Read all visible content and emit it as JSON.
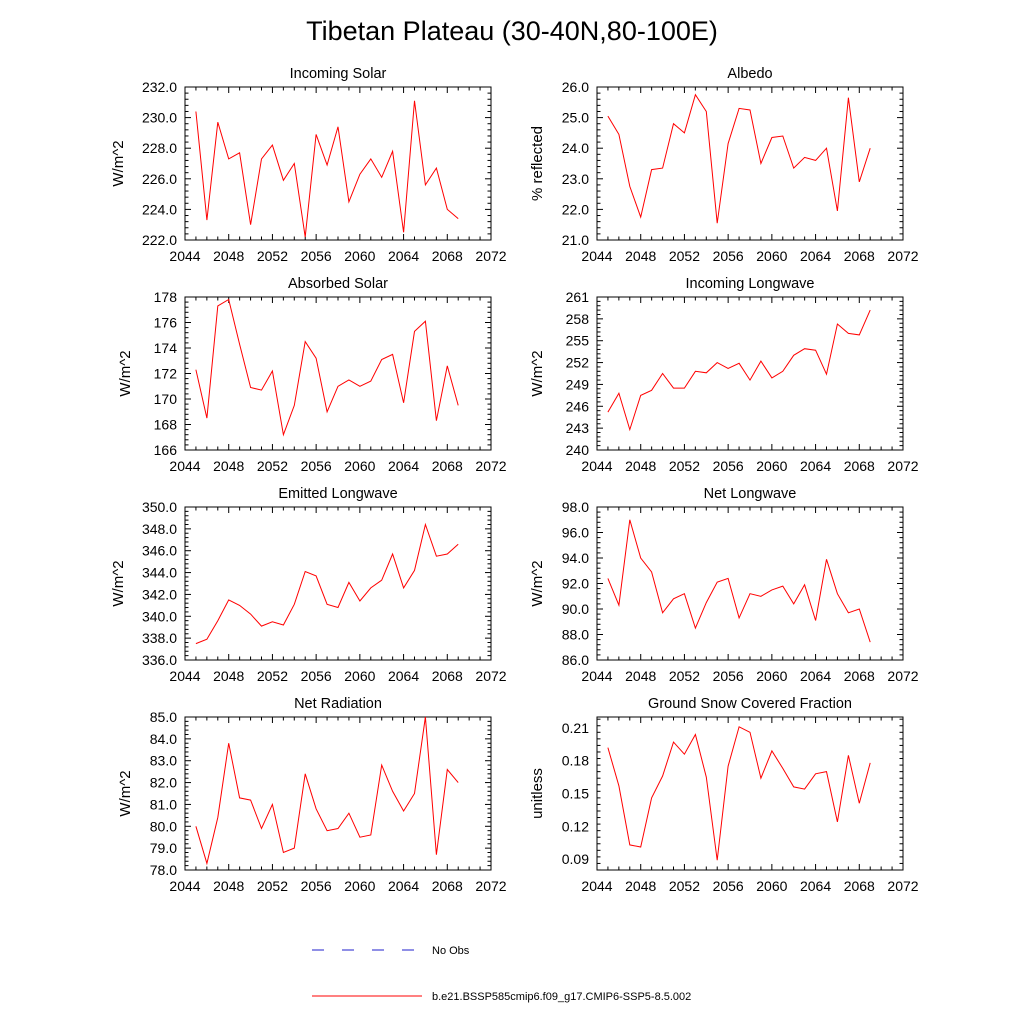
{
  "title": "Tibetan Plateau (30-40N,80-100E)",
  "colors": {
    "model": "#ff0000",
    "obs": "#1f1fcc",
    "axis": "#000000"
  },
  "legend": [
    {
      "label": "No Obs",
      "style": "dashed",
      "color": "#1f1fcc"
    },
    {
      "label": "b.e21.BSSP585cmip6.f09_g17.CMIP6-SSP5-8.5.002",
      "style": "solid",
      "color": "#ff0000"
    }
  ],
  "chart_data": [
    {
      "type": "line",
      "title": "Incoming Solar",
      "ylabel": "W/m^2",
      "xlim": [
        2044,
        2072
      ],
      "ylim": [
        222.0,
        232.0
      ],
      "xticks": [
        "2044",
        "2048",
        "2052",
        "2056",
        "2060",
        "2064",
        "2068",
        "2072"
      ],
      "yticks": [
        "222.0",
        "224.0",
        "226.0",
        "228.0",
        "230.0",
        "232.0"
      ],
      "x": [
        2045,
        2046,
        2047,
        2048,
        2049,
        2050,
        2051,
        2052,
        2053,
        2054,
        2055,
        2056,
        2057,
        2058,
        2059,
        2060,
        2061,
        2062,
        2063,
        2064,
        2065,
        2066,
        2067,
        2068,
        2069
      ],
      "series": [
        {
          "name": "b.e21.BSSP585cmip6.f09_g17.CMIP6-SSP5-8.5.002",
          "values": [
            230.4,
            223.3,
            229.7,
            227.3,
            227.7,
            223.0,
            227.3,
            228.2,
            225.9,
            227.0,
            222.2,
            228.9,
            226.9,
            229.4,
            224.5,
            226.3,
            227.3,
            226.1,
            227.8,
            222.5,
            231.1,
            225.6,
            226.7,
            224.0,
            223.4
          ]
        }
      ]
    },
    {
      "type": "line",
      "title": "Albedo",
      "ylabel": "% reflected",
      "xlim": [
        2044,
        2072
      ],
      "ylim": [
        21.0,
        26.0
      ],
      "xticks": [
        "2044",
        "2048",
        "2052",
        "2056",
        "2060",
        "2064",
        "2068",
        "2072"
      ],
      "yticks": [
        "21.0",
        "22.0",
        "23.0",
        "24.0",
        "25.0",
        "26.0"
      ],
      "x": [
        2045,
        2046,
        2047,
        2048,
        2049,
        2050,
        2051,
        2052,
        2053,
        2054,
        2055,
        2056,
        2057,
        2058,
        2059,
        2060,
        2061,
        2062,
        2063,
        2064,
        2065,
        2066,
        2067,
        2068,
        2069
      ],
      "series": [
        {
          "name": "b.e21.BSSP585cmip6.f09_g17.CMIP6-SSP5-8.5.002",
          "values": [
            25.05,
            24.45,
            22.75,
            21.75,
            23.3,
            23.35,
            24.8,
            24.5,
            25.75,
            25.2,
            21.55,
            24.15,
            25.3,
            25.25,
            23.5,
            24.35,
            24.4,
            23.35,
            23.7,
            23.6,
            24.0,
            21.95,
            25.65,
            22.9,
            24.0
          ]
        }
      ]
    },
    {
      "type": "line",
      "title": "Absorbed Solar",
      "ylabel": "W/m^2",
      "xlim": [
        2044,
        2072
      ],
      "ylim": [
        166,
        178
      ],
      "xticks": [
        "2044",
        "2048",
        "2052",
        "2056",
        "2060",
        "2064",
        "2068",
        "2072"
      ],
      "yticks": [
        "166",
        "168",
        "170",
        "172",
        "174",
        "176",
        "178"
      ],
      "x": [
        2045,
        2046,
        2047,
        2048,
        2049,
        2050,
        2051,
        2052,
        2053,
        2054,
        2055,
        2056,
        2057,
        2058,
        2059,
        2060,
        2061,
        2062,
        2063,
        2064,
        2065,
        2066,
        2067,
        2068,
        2069
      ],
      "series": [
        {
          "name": "b.e21.BSSP585cmip6.f09_g17.CMIP6-SSP5-8.5.002",
          "values": [
            172.3,
            168.5,
            177.3,
            177.8,
            174.3,
            170.9,
            170.7,
            172.2,
            167.2,
            169.5,
            174.5,
            173.2,
            169.0,
            171.0,
            171.5,
            171.0,
            171.4,
            173.1,
            173.5,
            169.7,
            175.3,
            176.1,
            168.3,
            172.6,
            169.5
          ]
        }
      ]
    },
    {
      "type": "line",
      "title": "Incoming Longwave",
      "ylabel": "W/m^2",
      "xlim": [
        2044,
        2072
      ],
      "ylim": [
        240,
        261
      ],
      "xticks": [
        "2044",
        "2048",
        "2052",
        "2056",
        "2060",
        "2064",
        "2068",
        "2072"
      ],
      "yticks": [
        "240",
        "243",
        "246",
        "249",
        "252",
        "255",
        "258",
        "261"
      ],
      "x": [
        2045,
        2046,
        2047,
        2048,
        2049,
        2050,
        2051,
        2052,
        2053,
        2054,
        2055,
        2056,
        2057,
        2058,
        2059,
        2060,
        2061,
        2062,
        2063,
        2064,
        2065,
        2066,
        2067,
        2068,
        2069
      ],
      "series": [
        {
          "name": "b.e21.BSSP585cmip6.f09_g17.CMIP6-SSP5-8.5.002",
          "values": [
            245.2,
            247.8,
            242.8,
            247.5,
            248.2,
            250.5,
            248.5,
            248.5,
            250.8,
            250.6,
            252.0,
            251.2,
            251.9,
            249.6,
            252.2,
            249.9,
            250.8,
            253.0,
            253.9,
            253.7,
            250.4,
            257.3,
            256.0,
            255.8,
            259.2
          ]
        }
      ]
    },
    {
      "type": "line",
      "title": "Emitted Longwave",
      "ylabel": "W/m^2",
      "xlim": [
        2044,
        2072
      ],
      "ylim": [
        336.0,
        350.0
      ],
      "xticks": [
        "2044",
        "2048",
        "2052",
        "2056",
        "2060",
        "2064",
        "2068",
        "2072"
      ],
      "yticks": [
        "336.0",
        "338.0",
        "340.0",
        "342.0",
        "344.0",
        "346.0",
        "348.0",
        "350.0"
      ],
      "x": [
        2045,
        2046,
        2047,
        2048,
        2049,
        2050,
        2051,
        2052,
        2053,
        2054,
        2055,
        2056,
        2057,
        2058,
        2059,
        2060,
        2061,
        2062,
        2063,
        2064,
        2065,
        2066,
        2067,
        2068,
        2069
      ],
      "series": [
        {
          "name": "b.e21.BSSP585cmip6.f09_g17.CMIP6-SSP5-8.5.002",
          "values": [
            337.5,
            337.9,
            339.6,
            341.5,
            341.0,
            340.2,
            339.1,
            339.5,
            339.2,
            341.1,
            344.1,
            343.7,
            341.1,
            340.8,
            343.1,
            341.4,
            342.6,
            343.3,
            345.7,
            342.6,
            344.2,
            348.4,
            345.5,
            345.7,
            346.6
          ]
        }
      ]
    },
    {
      "type": "line",
      "title": "Net Longwave",
      "ylabel": "W/m^2",
      "xlim": [
        2044,
        2072
      ],
      "ylim": [
        86.0,
        98.0
      ],
      "xticks": [
        "2044",
        "2048",
        "2052",
        "2056",
        "2060",
        "2064",
        "2068",
        "2072"
      ],
      "yticks": [
        "86.0",
        "88.0",
        "90.0",
        "92.0",
        "94.0",
        "96.0",
        "98.0"
      ],
      "x": [
        2045,
        2046,
        2047,
        2048,
        2049,
        2050,
        2051,
        2052,
        2053,
        2054,
        2055,
        2056,
        2057,
        2058,
        2059,
        2060,
        2061,
        2062,
        2063,
        2064,
        2065,
        2066,
        2067,
        2068,
        2069
      ],
      "series": [
        {
          "name": "b.e21.BSSP585cmip6.f09_g17.CMIP6-SSP5-8.5.002",
          "values": [
            92.4,
            90.3,
            97.0,
            94.0,
            92.9,
            89.7,
            90.8,
            91.2,
            88.5,
            90.5,
            92.1,
            92.4,
            89.3,
            91.2,
            91.0,
            91.5,
            91.8,
            90.4,
            91.9,
            89.1,
            93.9,
            91.2,
            89.7,
            90.0,
            87.4
          ]
        }
      ]
    },
    {
      "type": "line",
      "title": "Net Radiation",
      "ylabel": "W/m^2",
      "xlim": [
        2044,
        2072
      ],
      "ylim": [
        78.0,
        85.0
      ],
      "xticks": [
        "2044",
        "2048",
        "2052",
        "2056",
        "2060",
        "2064",
        "2068",
        "2072"
      ],
      "yticks": [
        "78.0",
        "79.0",
        "80.0",
        "81.0",
        "82.0",
        "83.0",
        "84.0",
        "85.0"
      ],
      "x": [
        2045,
        2046,
        2047,
        2048,
        2049,
        2050,
        2051,
        2052,
        2053,
        2054,
        2055,
        2056,
        2057,
        2058,
        2059,
        2060,
        2061,
        2062,
        2063,
        2064,
        2065,
        2066,
        2067,
        2068,
        2069
      ],
      "series": [
        {
          "name": "b.e21.BSSP585cmip6.f09_g17.CMIP6-SSP5-8.5.002",
          "values": [
            80.0,
            78.3,
            80.4,
            83.8,
            81.3,
            81.2,
            79.9,
            81.0,
            78.8,
            79.0,
            82.4,
            80.8,
            79.8,
            79.9,
            80.6,
            79.5,
            79.6,
            82.8,
            81.6,
            80.7,
            81.5,
            85.0,
            78.7,
            82.6,
            82.0
          ]
        }
      ]
    },
    {
      "type": "line",
      "title": "Ground Snow Covered Fraction",
      "ylabel": "unitless",
      "xlim": [
        2044,
        2072
      ],
      "ylim": [
        0.08,
        0.22
      ],
      "xticks": [
        "2044",
        "2048",
        "2052",
        "2056",
        "2060",
        "2064",
        "2068",
        "2072"
      ],
      "yticks": [
        "0.09",
        "0.12",
        "0.15",
        "0.18",
        "0.21"
      ],
      "ytick_values": [
        0.09,
        0.12,
        0.15,
        0.18,
        0.21
      ],
      "x": [
        2045,
        2046,
        2047,
        2048,
        2049,
        2050,
        2051,
        2052,
        2053,
        2054,
        2055,
        2056,
        2057,
        2058,
        2059,
        2060,
        2061,
        2062,
        2063,
        2064,
        2065,
        2066,
        2067,
        2068,
        2069
      ],
      "series": [
        {
          "name": "b.e21.BSSP585cmip6.f09_g17.CMIP6-SSP5-8.5.002",
          "values": [
            0.192,
            0.157,
            0.103,
            0.101,
            0.146,
            0.166,
            0.197,
            0.186,
            0.204,
            0.165,
            0.089,
            0.175,
            0.211,
            0.206,
            0.164,
            0.189,
            0.173,
            0.156,
            0.154,
            0.168,
            0.17,
            0.124,
            0.185,
            0.141,
            0.178
          ]
        }
      ]
    }
  ]
}
